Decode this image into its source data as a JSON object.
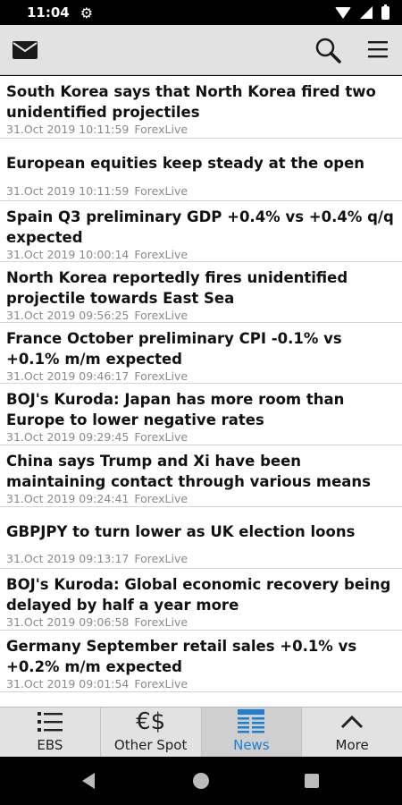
{
  "status_bar": {
    "time": "11:04"
  },
  "news": [
    {
      "headline": "South Korea says that North Korea fired two unidentified projectiles",
      "time": "31.Oct 2019 10:11:59",
      "source": "ForexLive"
    },
    {
      "headline": "European equities keep steady at the open",
      "time": "31.Oct 2019 10:11:59",
      "source": "ForexLive"
    },
    {
      "headline": "Spain Q3 preliminary GDP +0.4% vs +0.4% q/q expected",
      "time": "31.Oct 2019 10:00:14",
      "source": "ForexLive"
    },
    {
      "headline": "North Korea reportedly fires unidentified projectile towards East Sea",
      "time": "31.Oct 2019 09:56:25",
      "source": "ForexLive"
    },
    {
      "headline": "France October preliminary CPI -0.1% vs +0.1% m/m expected",
      "time": "31.Oct 2019 09:46:17",
      "source": "ForexLive"
    },
    {
      "headline": "BOJ's Kuroda: Japan has more room than Europe to lower negative rates",
      "time": "31.Oct 2019 09:29:45",
      "source": "ForexLive"
    },
    {
      "headline": "China says Trump and Xi have been maintaining contact through various means",
      "time": "31.Oct 2019 09:24:41",
      "source": "ForexLive"
    },
    {
      "headline": "GBPJPY to turn lower as UK election loons",
      "time": "31.Oct 2019 09:13:17",
      "source": "ForexLive"
    },
    {
      "headline": "BOJ's Kuroda: Global economic recovery being delayed by half a year more",
      "time": "31.Oct 2019 09:06:58",
      "source": "ForexLive"
    },
    {
      "headline": "Germany September retail sales +0.1% vs +0.2% m/m expected",
      "time": "31.Oct 2019 09:01:54",
      "source": "ForexLive"
    }
  ],
  "bottom_nav": {
    "tabs": [
      {
        "label": "EBS",
        "icon": "list-icon"
      },
      {
        "label": "Other Spot",
        "icon": "euro-dollar-icon",
        "glyph": "€$"
      },
      {
        "label": "News",
        "icon": "news-icon",
        "active": true
      },
      {
        "label": "More",
        "icon": "chevron-up-icon"
      }
    ]
  },
  "colors": {
    "active_tab": "#1e7fd1",
    "bar_bg": "#e2e2e2"
  }
}
